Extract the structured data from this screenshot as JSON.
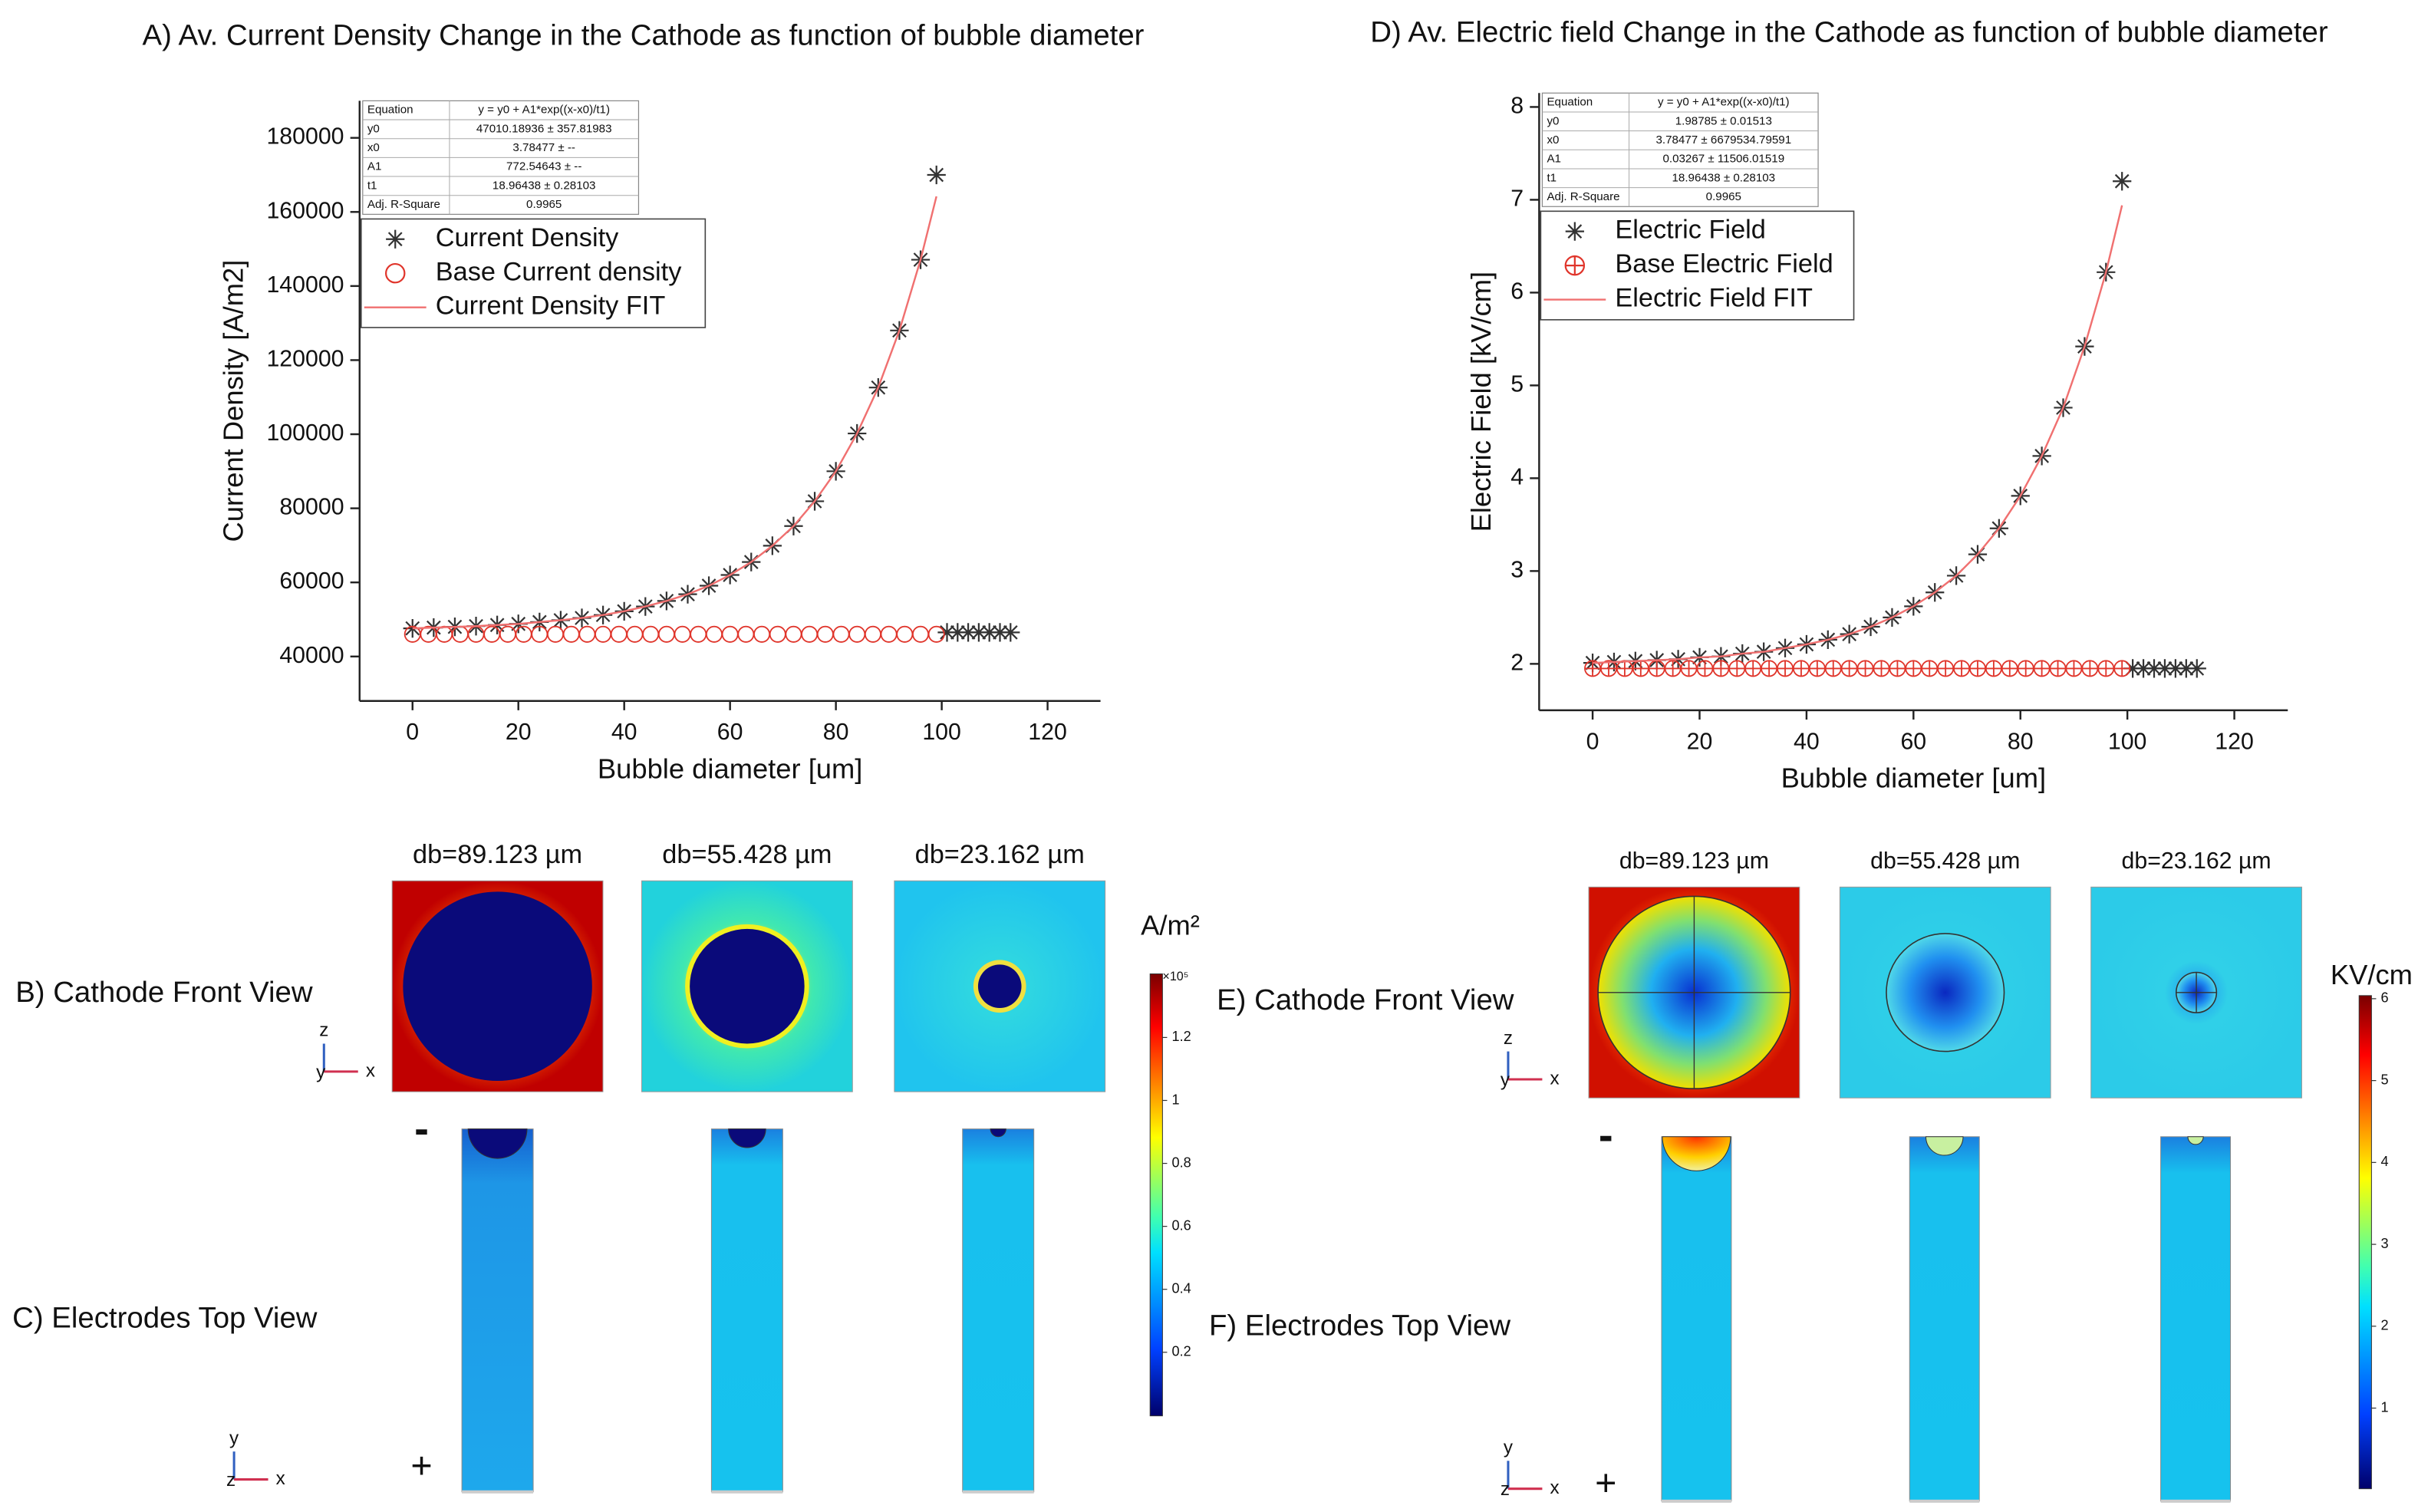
{
  "chart_data": [
    {
      "type": "scatter",
      "title": "A) Av. Current Density Change in the Cathode as function of bubble diameter",
      "xlabel": "Bubble diameter [um]",
      "ylabel": "Current Density [A/m2]",
      "xlim": [
        -10,
        130
      ],
      "xticks": [
        0,
        20,
        40,
        60,
        80,
        100,
        120
      ],
      "ylim": [
        28000,
        190000
      ],
      "yticks": [
        40000,
        60000,
        80000,
        100000,
        120000,
        140000,
        160000,
        180000
      ],
      "legend": "upper left",
      "fit_table": {
        "header": [
          "Equation",
          "y = y0 + A1*exp((x-x0)/t1)"
        ],
        "rows": [
          [
            "y0",
            "47010.18936 ± 357.81983"
          ],
          [
            "x0",
            "3.78477 ± --"
          ],
          [
            "A1",
            "772.54643 ± --"
          ],
          [
            "t1",
            "18.96438 ± 0.28103"
          ],
          [
            "Adj. R-Square",
            "0.9965"
          ]
        ]
      },
      "series": [
        {
          "name": "Current Density",
          "marker": "asterisk",
          "color": "#333333",
          "x": [
            0,
            4,
            8,
            12,
            16,
            20,
            24,
            28,
            32,
            36,
            40,
            44,
            48,
            52,
            56,
            60,
            64,
            68,
            72,
            76,
            80,
            84,
            88,
            92,
            96,
            99,
            101,
            103,
            105,
            107,
            109,
            111,
            113
          ],
          "values": [
            47600,
            47800,
            48000,
            48200,
            48500,
            48800,
            49300,
            49800,
            50400,
            51200,
            52200,
            53500,
            55000,
            56800,
            59100,
            62000,
            65500,
            69900,
            75200,
            81900,
            90000,
            100200,
            112600,
            128000,
            147100,
            170000,
            46500,
            46500,
            46500,
            46500,
            46500,
            46500,
            46500
          ]
        },
        {
          "name": "Base Current density",
          "marker": "circle",
          "color": "#e0352b",
          "x": [
            0,
            3,
            6,
            9,
            12,
            15,
            18,
            21,
            24,
            27,
            30,
            33,
            36,
            39,
            42,
            45,
            48,
            51,
            54,
            57,
            60,
            63,
            66,
            69,
            72,
            75,
            78,
            81,
            84,
            87,
            90,
            93,
            96,
            99
          ],
          "values": [
            46000,
            46000,
            46000,
            46000,
            46000,
            46000,
            46000,
            46000,
            46000,
            46000,
            46000,
            46000,
            46000,
            46000,
            46000,
            46000,
            46000,
            46000,
            46000,
            46000,
            46000,
            46000,
            46000,
            46000,
            46000,
            46000,
            46000,
            46000,
            46000,
            46000,
            46000,
            46000,
            46000,
            46000
          ]
        },
        {
          "name": "Current Density FIT",
          "marker": "line",
          "color": "#f07070",
          "x": [
            0,
            4,
            8,
            12,
            16,
            20,
            24,
            28,
            32,
            36,
            40,
            44,
            48,
            52,
            56,
            60,
            64,
            68,
            72,
            76,
            80,
            84,
            88,
            92,
            96,
            99
          ],
          "values": [
            47600,
            47800,
            48000,
            48200,
            48500,
            48800,
            49300,
            49800,
            50400,
            51200,
            52200,
            53500,
            55000,
            56800,
            59100,
            62000,
            65500,
            69900,
            75200,
            81900,
            90000,
            100200,
            112600,
            128000,
            147100,
            164200
          ]
        }
      ]
    },
    {
      "type": "scatter",
      "title": "D) Av. Electric field Change in the Cathode as function of bubble diameter",
      "xlabel": "Bubble diameter [um]",
      "ylabel": "Electric Field [kV/cm]",
      "xlim": [
        -10,
        130
      ],
      "xticks": [
        0,
        20,
        40,
        60,
        80,
        100,
        120
      ],
      "ylim": [
        1.5,
        8.15
      ],
      "yticks": [
        2,
        3,
        4,
        5,
        6,
        7,
        8
      ],
      "legend": "upper left",
      "fit_table": {
        "header": [
          "Equation",
          "y = y0 + A1*exp((x-x0)/t1)"
        ],
        "rows": [
          [
            "y0",
            "1.98785 ± 0.01513"
          ],
          [
            "x0",
            "3.78477 ± 6679534.79591"
          ],
          [
            "A1",
            "0.03267 ± 11506.01519"
          ],
          [
            "t1",
            "18.96438 ± 0.28103"
          ],
          [
            "Adj. R-Square",
            "0.9965"
          ]
        ]
      },
      "series": [
        {
          "name": "Electric Field",
          "marker": "asterisk",
          "color": "#333333",
          "x": [
            0,
            4,
            8,
            12,
            16,
            20,
            24,
            28,
            32,
            36,
            40,
            44,
            48,
            52,
            56,
            60,
            64,
            68,
            72,
            76,
            80,
            84,
            88,
            92,
            96,
            99,
            101,
            103,
            105,
            107,
            109,
            111,
            113
          ],
          "values": [
            2.01,
            2.02,
            2.03,
            2.04,
            2.05,
            2.07,
            2.08,
            2.11,
            2.13,
            2.17,
            2.21,
            2.26,
            2.32,
            2.4,
            2.5,
            2.62,
            2.77,
            2.95,
            3.18,
            3.46,
            3.81,
            4.24,
            4.76,
            5.42,
            6.22,
            7.2,
            1.95,
            1.95,
            1.95,
            1.95,
            1.95,
            1.95,
            1.95
          ]
        },
        {
          "name": "Base Electric Field",
          "marker": "circle-plus",
          "color": "#e0352b",
          "x": [
            0,
            3,
            6,
            9,
            12,
            15,
            18,
            21,
            24,
            27,
            30,
            33,
            36,
            39,
            42,
            45,
            48,
            51,
            54,
            57,
            60,
            63,
            66,
            69,
            72,
            75,
            78,
            81,
            84,
            87,
            90,
            93,
            96,
            99
          ],
          "values": [
            1.95,
            1.95,
            1.95,
            1.95,
            1.95,
            1.95,
            1.95,
            1.95,
            1.95,
            1.95,
            1.95,
            1.95,
            1.95,
            1.95,
            1.95,
            1.95,
            1.95,
            1.95,
            1.95,
            1.95,
            1.95,
            1.95,
            1.95,
            1.95,
            1.95,
            1.95,
            1.95,
            1.95,
            1.95,
            1.95,
            1.95,
            1.95,
            1.95,
            1.95
          ]
        },
        {
          "name": "Electric Field FIT",
          "marker": "line",
          "color": "#f07070",
          "x": [
            0,
            4,
            8,
            12,
            16,
            20,
            24,
            28,
            32,
            36,
            40,
            44,
            48,
            52,
            56,
            60,
            64,
            68,
            72,
            76,
            80,
            84,
            88,
            92,
            96,
            99
          ],
          "values": [
            2.01,
            2.02,
            2.03,
            2.04,
            2.05,
            2.07,
            2.08,
            2.11,
            2.13,
            2.17,
            2.21,
            2.26,
            2.32,
            2.4,
            2.5,
            2.62,
            2.77,
            2.95,
            3.18,
            3.46,
            3.81,
            4.24,
            4.76,
            5.42,
            6.22,
            6.94
          ]
        }
      ]
    }
  ],
  "panels": {
    "left": {
      "label_front": "B) Cathode Front View",
      "label_top": "C) Electrodes Top View",
      "diameters": [
        "db=89.123 µm",
        "db=55.428 µm",
        "db=23.162 µm"
      ],
      "colorbar": {
        "unit": "A/m²",
        "multiplier": "×10⁵",
        "ticks": [
          "1.2",
          "1",
          "0.8",
          "0.6",
          "0.4",
          "0.2"
        ]
      },
      "axes_front": [
        "z",
        "y",
        "x"
      ],
      "axes_top": [
        "y",
        "z",
        "x"
      ],
      "polarity": [
        "-",
        "+"
      ]
    },
    "right": {
      "label_front": "E) Cathode Front View",
      "label_top": "F) Electrodes Top View",
      "diameters": [
        "db=89.123 µm",
        "db=55.428 µm",
        "db=23.162 µm"
      ],
      "colorbar": {
        "unit": "KV/cm",
        "ticks": [
          "6",
          "5",
          "4",
          "3",
          "2",
          "1"
        ]
      },
      "axes_front": [
        "z",
        "y",
        "x"
      ],
      "axes_top": [
        "y",
        "z",
        "x"
      ],
      "polarity": [
        "-",
        "+"
      ]
    }
  }
}
